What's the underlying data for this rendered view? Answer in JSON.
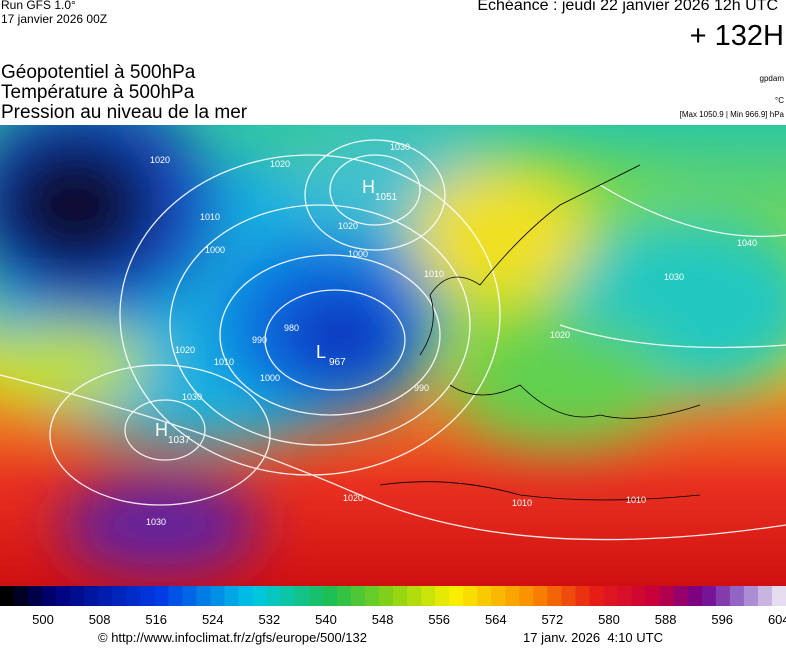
{
  "header": {
    "run": "Run GFS 1.0°",
    "run_date": "17 janvier 2026 00Z",
    "echeance": "Echéance : jeudi 22 janvier 2026 12h UTC",
    "lead": "+ 132H",
    "fields": [
      "Géopotentiel à 500hPa",
      "Température à 500hPa",
      "Pression au niveau de la mer"
    ],
    "units": [
      "gpdam",
      "°C",
      "[Max 1050.9 | Min 966.9] hPa"
    ]
  },
  "map": {
    "centers": [
      {
        "letter": "H",
        "value": "1051"
      },
      {
        "letter": "L",
        "value": "967"
      },
      {
        "letter": "H",
        "value": "1037"
      }
    ],
    "contour_labels": [
      "1020",
      "1020",
      "1030",
      "1010",
      "1000",
      "1020",
      "1000",
      "980",
      "990",
      "1000",
      "1010",
      "1020",
      "1030",
      "1020",
      "1030",
      "1010",
      "990",
      "1030",
      "1040",
      "1020",
      "1010",
      "1010"
    ]
  },
  "colorbar": {
    "labels": [
      "500",
      "508",
      "516",
      "524",
      "532",
      "540",
      "548",
      "556",
      "564",
      "572",
      "580",
      "588",
      "596",
      "604"
    ]
  },
  "footer": {
    "url": "© http://www.infoclimat.fr/z/gfs/europe/500/132",
    "generated": "17 janv. 2026  4:10 UTC"
  }
}
